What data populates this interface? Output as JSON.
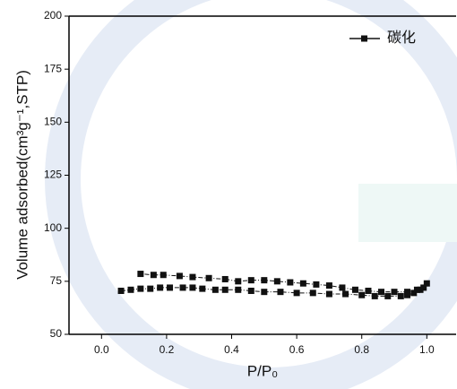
{
  "chart_data": {
    "type": "line",
    "xlabel": "P/P₀",
    "ylabel": "Volume adsorbed(cm³g⁻¹,STP)",
    "x": [
      0.06,
      0.09,
      0.12,
      0.15,
      0.18,
      0.21,
      0.25,
      0.28,
      0.31,
      0.35,
      0.38,
      0.42,
      0.46,
      0.5,
      0.55,
      0.6,
      0.65,
      0.7,
      0.75,
      0.8,
      0.84,
      0.88,
      0.92,
      0.94,
      0.96,
      0.98,
      1.0,
      0.99,
      0.97,
      0.94,
      0.9,
      0.86,
      0.82,
      0.78,
      0.74,
      0.7,
      0.66,
      0.62,
      0.58,
      0.54,
      0.5,
      0.46,
      0.42,
      0.38,
      0.33,
      0.28,
      0.24,
      0.19,
      0.16,
      0.12
    ],
    "series": [
      {
        "name": "碳化",
        "color": "#111111",
        "values": [
          70.5,
          71,
          71.5,
          71.5,
          72,
          72,
          72,
          72,
          71.5,
          71,
          71,
          71,
          70.5,
          70,
          70,
          69.5,
          69.5,
          69,
          69,
          68.5,
          68,
          68,
          68,
          68.5,
          69.5,
          71,
          74,
          72,
          71,
          70,
          70,
          70,
          70.5,
          71,
          72,
          73,
          73.5,
          74,
          74.5,
          75,
          75.5,
          75.5,
          75,
          76,
          76.5,
          77,
          77.5,
          78,
          78,
          78.5
        ]
      }
    ],
    "xlim": [
      -0.1,
      1.09
    ],
    "ylim": [
      50,
      200
    ],
    "xticks": [
      {
        "value": 0,
        "label": "0.0"
      },
      0.2,
      0.4,
      0.6,
      0.8,
      {
        "value": 1,
        "label": "1.0"
      }
    ],
    "yticks": [
      50,
      75,
      100,
      125,
      150,
      175,
      200
    ],
    "legend": "top-right"
  }
}
